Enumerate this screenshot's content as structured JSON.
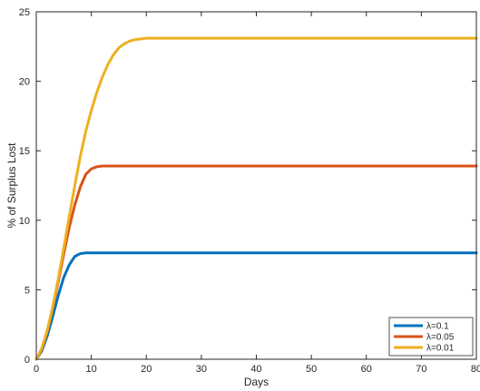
{
  "chart_data": {
    "type": "line",
    "title": "",
    "xlabel": "Days",
    "ylabel": "% of Surplus Lost",
    "xlim": [
      0,
      80
    ],
    "ylim": [
      0,
      25
    ],
    "xticks": [
      0,
      10,
      20,
      30,
      40,
      50,
      60,
      70,
      80
    ],
    "yticks": [
      0,
      5,
      10,
      15,
      20,
      25
    ],
    "grid": false,
    "legend_position": "bottom-right",
    "series": [
      {
        "name": "λ=0.1",
        "color": "#0072BD",
        "x": [
          0,
          1,
          2,
          3,
          4,
          5,
          6,
          7,
          8,
          9,
          10,
          12,
          15,
          20,
          30,
          40,
          50,
          60,
          70,
          80
        ],
        "y": [
          0,
          0.6,
          1.7,
          3.1,
          4.6,
          5.9,
          6.8,
          7.4,
          7.6,
          7.65,
          7.65,
          7.65,
          7.65,
          7.65,
          7.65,
          7.65,
          7.65,
          7.65,
          7.65,
          7.65
        ]
      },
      {
        "name": "λ=0.05",
        "color": "#D95319",
        "x": [
          0,
          1,
          2,
          3,
          4,
          5,
          6,
          7,
          8,
          9,
          10,
          11,
          12,
          15,
          20,
          30,
          40,
          50,
          60,
          70,
          80
        ],
        "y": [
          0,
          0.7,
          2.0,
          3.7,
          5.6,
          7.6,
          9.5,
          11.1,
          12.4,
          13.3,
          13.7,
          13.85,
          13.9,
          13.9,
          13.9,
          13.9,
          13.9,
          13.9,
          13.9,
          13.9,
          13.9
        ]
      },
      {
        "name": "λ=0.01",
        "color": "#EDB120",
        "x": [
          0,
          1,
          2,
          3,
          4,
          5,
          6,
          7,
          8,
          9,
          10,
          11,
          12,
          13,
          14,
          15,
          16,
          17,
          18,
          19,
          20,
          21,
          22,
          25,
          30,
          40,
          50,
          60,
          70,
          80
        ],
        "y": [
          0,
          0.8,
          2.1,
          3.8,
          5.8,
          8.0,
          10.3,
          12.5,
          14.6,
          16.4,
          17.9,
          19.2,
          20.3,
          21.2,
          21.9,
          22.4,
          22.7,
          22.9,
          23.0,
          23.05,
          23.1,
          23.1,
          23.1,
          23.1,
          23.1,
          23.1,
          23.1,
          23.1,
          23.1,
          23.1
        ]
      }
    ]
  }
}
